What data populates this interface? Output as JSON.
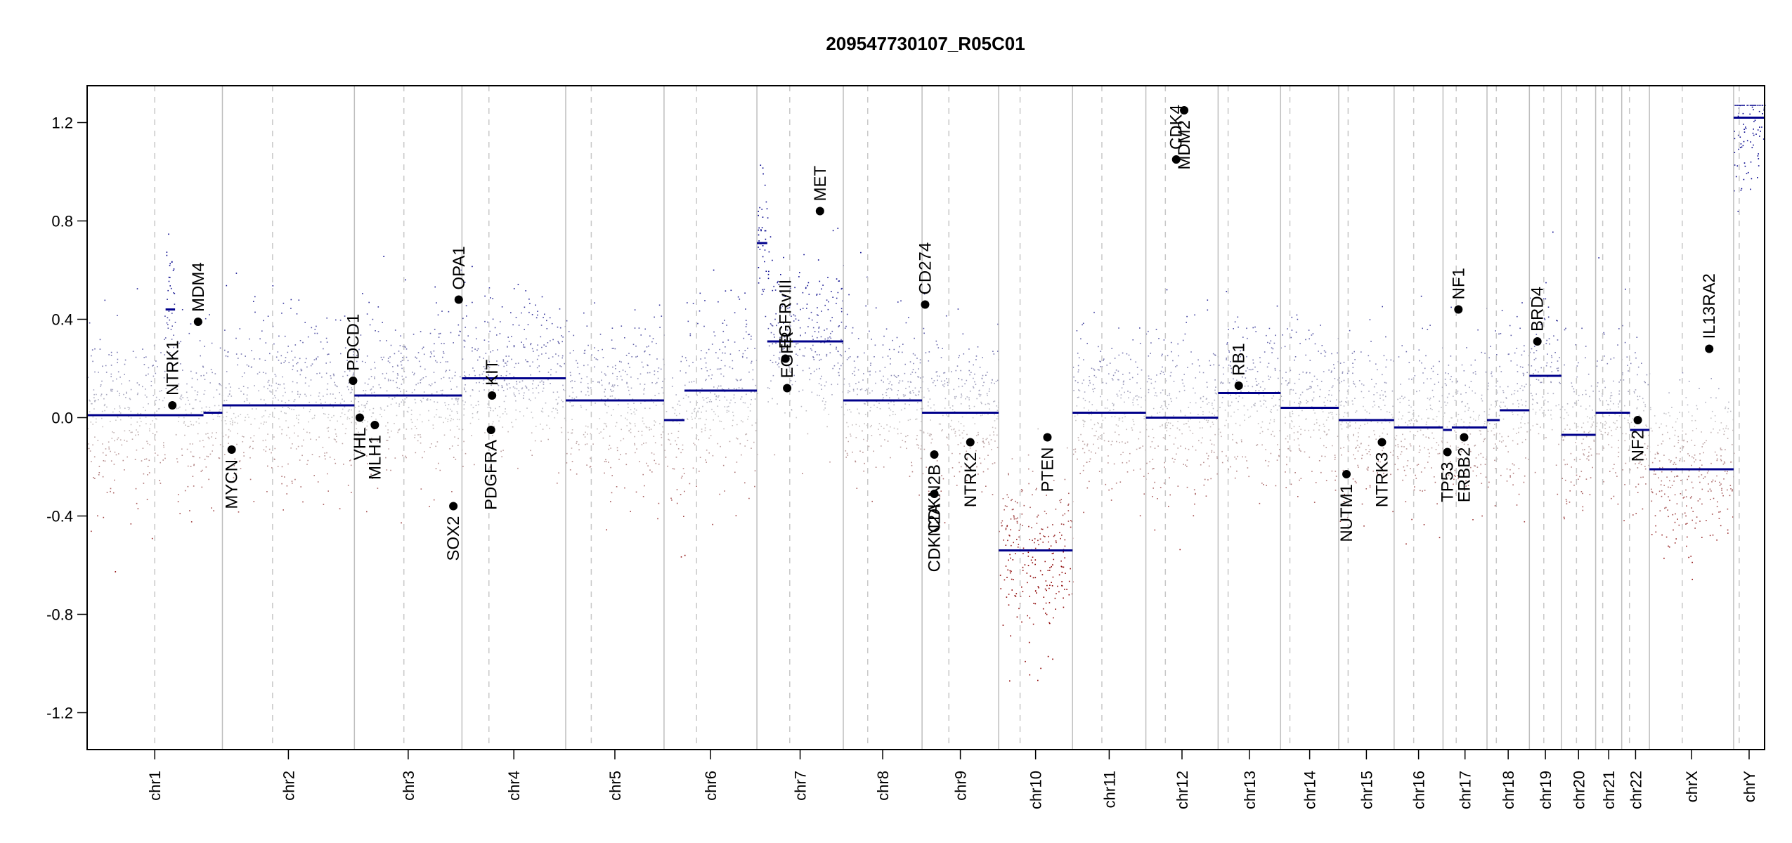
{
  "chart_data": {
    "type": "scatter",
    "title": "209547730107_R05C01",
    "xlabel": "",
    "ylabel": "",
    "ylim": [
      -1.35,
      1.35
    ],
    "yticks": [
      -1.2,
      -0.8,
      -0.4,
      0.0,
      0.4,
      0.8,
      1.2
    ],
    "ytick_labels": [
      "-1.2",
      "-0.8",
      "-0.4",
      "0.0",
      "0.4",
      "0.8",
      "1.2"
    ],
    "grid": false,
    "legend": "none",
    "colors": {
      "gain": "#00008b",
      "loss": "#8b0000",
      "neutral": "#c8c8c8",
      "segment": "#00008b",
      "gene_point": "#000000",
      "separator": "#bebebe"
    },
    "chromosomes": [
      {
        "name": "chr1",
        "length": 249,
        "centromere": 0.5,
        "segments": [
          {
            "from": 0,
            "to": 0.86,
            "value": 0.01
          },
          {
            "from": 0.86,
            "to": 1.0,
            "value": 0.02
          }
        ],
        "segments_extra": [
          {
            "from": 0.58,
            "to": 0.65,
            "value": 0.44
          }
        ]
      },
      {
        "name": "chr2",
        "length": 243,
        "centromere": 0.38,
        "segments": [
          {
            "from": 0,
            "to": 1.0,
            "value": 0.05
          }
        ]
      },
      {
        "name": "chr3",
        "length": 198,
        "centromere": 0.46,
        "segments": [
          {
            "from": 0,
            "to": 1.0,
            "value": 0.09
          }
        ]
      },
      {
        "name": "chr4",
        "length": 191,
        "centromere": 0.26,
        "segments": [
          {
            "from": 0,
            "to": 1.0,
            "value": 0.16
          }
        ]
      },
      {
        "name": "chr5",
        "length": 181,
        "centromere": 0.26,
        "segments": [
          {
            "from": 0,
            "to": 1.0,
            "value": 0.07
          }
        ]
      },
      {
        "name": "chr6",
        "length": 171,
        "centromere": 0.35,
        "segments": [
          {
            "from": 0,
            "to": 0.22,
            "value": -0.01
          },
          {
            "from": 0.22,
            "to": 1.0,
            "value": 0.11
          }
        ]
      },
      {
        "name": "chr7",
        "length": 159,
        "centromere": 0.38,
        "segments": [
          {
            "from": 0,
            "to": 0.12,
            "value": 0.71
          },
          {
            "from": 0.12,
            "to": 1.0,
            "value": 0.31
          }
        ]
      },
      {
        "name": "chr8",
        "length": 145,
        "centromere": 0.31,
        "segments": [
          {
            "from": 0,
            "to": 1.0,
            "value": 0.07
          }
        ]
      },
      {
        "name": "chr9",
        "length": 141,
        "centromere": 0.35,
        "segments": [
          {
            "from": 0,
            "to": 1.0,
            "value": 0.02
          }
        ]
      },
      {
        "name": "chr10",
        "length": 136,
        "centromere": 0.29,
        "segments": [
          {
            "from": 0,
            "to": 1.0,
            "value": -0.54
          }
        ]
      },
      {
        "name": "chr11",
        "length": 135,
        "centromere": 0.4,
        "segments": [
          {
            "from": 0,
            "to": 1.0,
            "value": 0.02
          }
        ]
      },
      {
        "name": "chr12",
        "length": 133,
        "centromere": 0.27,
        "segments": [
          {
            "from": 0,
            "to": 1.0,
            "value": 0.0
          }
        ]
      },
      {
        "name": "chr13",
        "length": 115,
        "centromere": 0.16,
        "segments": [
          {
            "from": 0,
            "to": 1.0,
            "value": 0.1
          }
        ]
      },
      {
        "name": "chr14",
        "length": 107,
        "centromere": 0.16,
        "segments": [
          {
            "from": 0,
            "to": 1.0,
            "value": 0.04
          }
        ]
      },
      {
        "name": "chr15",
        "length": 102,
        "centromere": 0.17,
        "segments": [
          {
            "from": 0,
            "to": 1.0,
            "value": -0.01
          }
        ]
      },
      {
        "name": "chr16",
        "length": 90,
        "centromere": 0.4,
        "segments": [
          {
            "from": 0,
            "to": 1.0,
            "value": -0.04
          }
        ]
      },
      {
        "name": "chr17",
        "length": 81,
        "centromere": 0.3,
        "segments": [
          {
            "from": 0,
            "to": 0.2,
            "value": -0.05
          },
          {
            "from": 0.2,
            "to": 1.0,
            "value": -0.04
          }
        ]
      },
      {
        "name": "chr18",
        "length": 78,
        "centromere": 0.22,
        "segments": [
          {
            "from": 0,
            "to": 0.3,
            "value": -0.01
          },
          {
            "from": 0.3,
            "to": 1.0,
            "value": 0.03
          }
        ]
      },
      {
        "name": "chr19",
        "length": 59,
        "centromere": 0.45,
        "segments": [
          {
            "from": 0,
            "to": 1.0,
            "value": 0.17
          }
        ]
      },
      {
        "name": "chr20",
        "length": 63,
        "centromere": 0.44,
        "segments": [
          {
            "from": 0,
            "to": 1.0,
            "value": -0.07
          }
        ]
      },
      {
        "name": "chr21",
        "length": 48,
        "centromere": 0.27,
        "segments": [
          {
            "from": 0,
            "to": 1.0,
            "value": 0.02
          }
        ]
      },
      {
        "name": "chr22",
        "length": 51,
        "centromere": 0.28,
        "segments": [
          {
            "from": 0,
            "to": 0.3,
            "value": 0.02
          },
          {
            "from": 0.3,
            "to": 1.0,
            "value": -0.05
          }
        ]
      },
      {
        "name": "chrX",
        "length": 155,
        "centromere": 0.39,
        "segments": [
          {
            "from": 0,
            "to": 1.0,
            "value": -0.21
          }
        ]
      },
      {
        "name": "chrY",
        "length": 57,
        "centromere": 0.18,
        "segments": [
          {
            "from": 0,
            "to": 1.0,
            "value": 1.22
          }
        ]
      }
    ],
    "genes": [
      {
        "name": "NTRK1",
        "chr": "chr1",
        "pos": 0.63,
        "value": 0.05,
        "label_side": "above"
      },
      {
        "name": "MDM4",
        "chr": "chr1",
        "pos": 0.82,
        "value": 0.39,
        "label_side": "above"
      },
      {
        "name": "MYCN",
        "chr": "chr2",
        "pos": 0.07,
        "value": -0.13,
        "label_side": "below"
      },
      {
        "name": "PDCD1",
        "chr": "chr2",
        "pos": 0.99,
        "value": 0.15,
        "label_side": "above"
      },
      {
        "name": "VHL",
        "chr": "chr3",
        "pos": 0.05,
        "value": 0.0,
        "label_side": "below"
      },
      {
        "name": "MLH1",
        "chr": "chr3",
        "pos": 0.19,
        "value": -0.03,
        "label_side": "below"
      },
      {
        "name": "SOX2",
        "chr": "chr3",
        "pos": 0.92,
        "value": -0.36,
        "label_side": "below"
      },
      {
        "name": "OPA1",
        "chr": "chr3",
        "pos": 0.97,
        "value": 0.48,
        "label_side": "above"
      },
      {
        "name": "PDGFRA",
        "chr": "chr4",
        "pos": 0.28,
        "value": -0.05,
        "label_side": "below"
      },
      {
        "name": "KIT",
        "chr": "chr4",
        "pos": 0.29,
        "value": 0.09,
        "label_side": "above"
      },
      {
        "name": "EGFR",
        "chr": "chr7",
        "pos": 0.35,
        "value": 0.12,
        "label_side": "above"
      },
      {
        "name": "EGFRvIII",
        "chr": "chr7",
        "pos": 0.33,
        "value": 0.24,
        "label_side": "above"
      },
      {
        "name": "MET",
        "chr": "chr7",
        "pos": 0.73,
        "value": 0.84,
        "label_side": "above"
      },
      {
        "name": "CD274",
        "chr": "chr9",
        "pos": 0.04,
        "value": 0.46,
        "label_side": "above"
      },
      {
        "name": "CDKN2A",
        "chr": "chr9",
        "pos": 0.16,
        "value": -0.31,
        "label_side": "below"
      },
      {
        "name": "CDKN2B",
        "chr": "chr9",
        "pos": 0.16,
        "value": -0.15,
        "label_side": "below"
      },
      {
        "name": "NTRK2",
        "chr": "chr9",
        "pos": 0.63,
        "value": -0.1,
        "label_side": "below"
      },
      {
        "name": "PTEN",
        "chr": "chr10",
        "pos": 0.66,
        "value": -0.08,
        "label_side": "below"
      },
      {
        "name": "CDK4",
        "chr": "chr12",
        "pos": 0.42,
        "value": 1.05,
        "label_side": "above"
      },
      {
        "name": "MDM2",
        "chr": "chr12",
        "pos": 0.53,
        "value": 1.25,
        "label_side": "below"
      },
      {
        "name": "RB1",
        "chr": "chr13",
        "pos": 0.33,
        "value": 0.13,
        "label_side": "above"
      },
      {
        "name": "NUTM1",
        "chr": "chr15",
        "pos": 0.14,
        "value": -0.23,
        "label_side": "below"
      },
      {
        "name": "NTRK3",
        "chr": "chr15",
        "pos": 0.78,
        "value": -0.1,
        "label_side": "below"
      },
      {
        "name": "TP53",
        "chr": "chr17",
        "pos": 0.1,
        "value": -0.14,
        "label_side": "below"
      },
      {
        "name": "ERBB2",
        "chr": "chr17",
        "pos": 0.48,
        "value": -0.08,
        "label_side": "below"
      },
      {
        "name": "NF1",
        "chr": "chr17",
        "pos": 0.35,
        "value": 0.44,
        "label_side": "above"
      },
      {
        "name": "BRD4",
        "chr": "chr19",
        "pos": 0.25,
        "value": 0.31,
        "label_side": "above"
      },
      {
        "name": "NF2",
        "chr": "chr22",
        "pos": 0.58,
        "value": -0.01,
        "label_side": "below"
      },
      {
        "name": "IL13RA2",
        "chr": "chrX",
        "pos": 0.71,
        "value": 0.28,
        "label_side": "above"
      }
    ]
  }
}
